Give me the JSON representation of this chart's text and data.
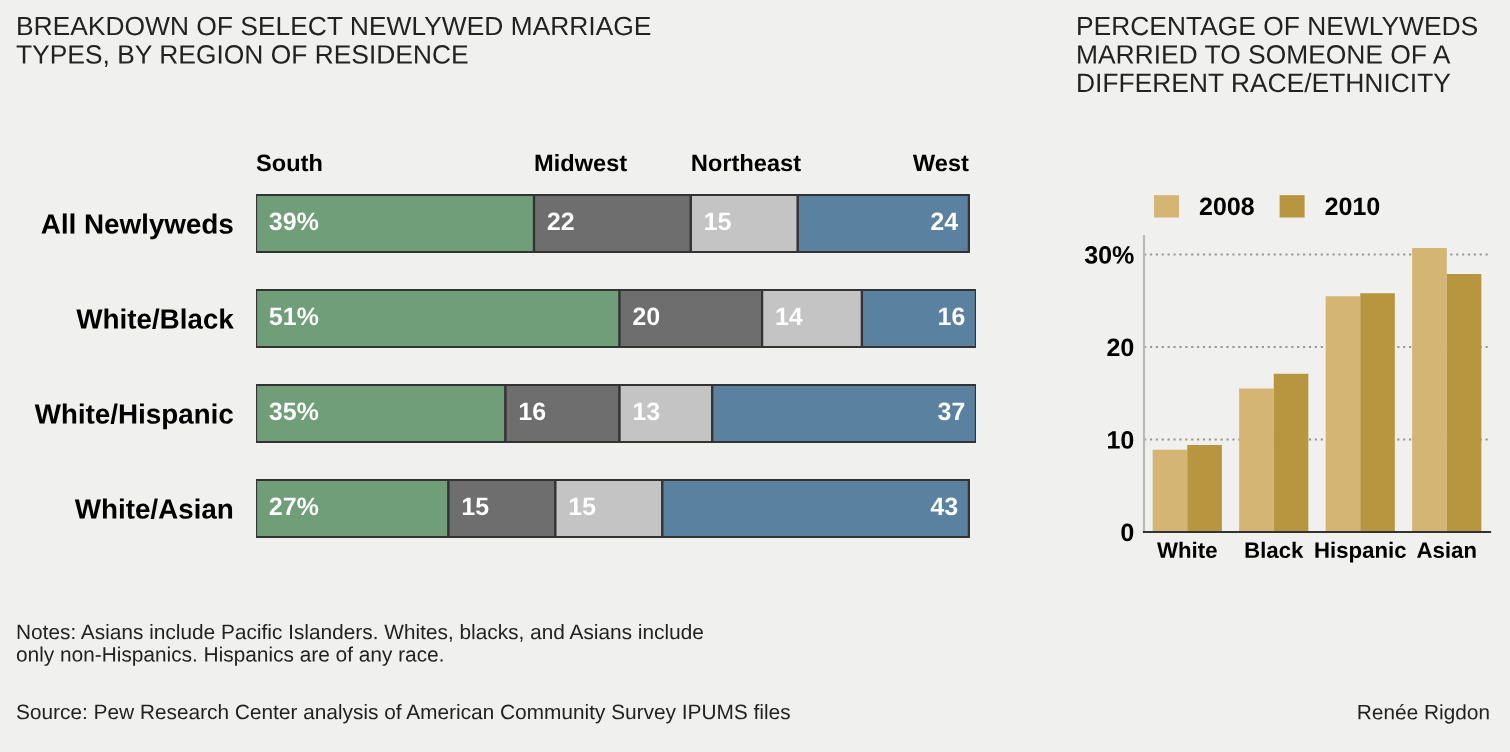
{
  "chart_data": [
    {
      "type": "bar",
      "orientation": "horizontal",
      "stacked": true,
      "title": "BREAKDOWN OF SELECT NEWLYWED MARRIAGE\nTYPES, BY REGION OF RESIDENCE",
      "categories": [
        "All Newlyweds",
        "White/Black",
        "White/Hispanic",
        "White/Asian"
      ],
      "series": [
        {
          "name": "South",
          "color": "#6f9e78",
          "values": [
            39,
            51,
            35,
            27
          ],
          "value_labels": [
            "39%",
            "51%",
            "35%",
            "27%"
          ]
        },
        {
          "name": "Midwest",
          "color": "#6e6e6e",
          "values": [
            22,
            20,
            16,
            15
          ],
          "value_labels": [
            "22",
            "20",
            "16",
            "15"
          ]
        },
        {
          "name": "Northeast",
          "color": "#c4c4c4",
          "values": [
            15,
            14,
            13,
            15
          ],
          "value_labels": [
            "15",
            "14",
            "13",
            "15"
          ]
        },
        {
          "name": "West",
          "color": "#5a82a0",
          "values": [
            24,
            16,
            37,
            43
          ],
          "value_labels": [
            "24",
            "16",
            "37",
            "43"
          ]
        }
      ],
      "legend": "top",
      "annotations": [
        "Notes: Asians include Pacific Islanders. Whites, blacks, and Asians include\nonly non-Hispanics. Hispanics are of any race.",
        "Source: Pew Research Center analysis of American Community Survey IPUMS files",
        "Renée Rigdon"
      ]
    },
    {
      "type": "bar",
      "title": "PERCENTAGE OF NEWLYWEDS\nMARRIED TO SOMEONE OF A\nDIFFERENT RACE/ETHNICITY",
      "categories": [
        "White",
        "Black",
        "Hispanic",
        "Asian"
      ],
      "series": [
        {
          "name": "2008",
          "color": "#d4b574",
          "values": [
            8.9,
            15.5,
            25.5,
            30.7
          ]
        },
        {
          "name": "2010",
          "color": "#b8963f",
          "values": [
            9.4,
            17.1,
            25.8,
            27.9
          ]
        }
      ],
      "ylim": [
        0,
        32
      ],
      "yticks": [
        0,
        10,
        20,
        {
          "value": 30,
          "label": "30%"
        }
      ],
      "grid": "y",
      "legend": "top"
    }
  ]
}
